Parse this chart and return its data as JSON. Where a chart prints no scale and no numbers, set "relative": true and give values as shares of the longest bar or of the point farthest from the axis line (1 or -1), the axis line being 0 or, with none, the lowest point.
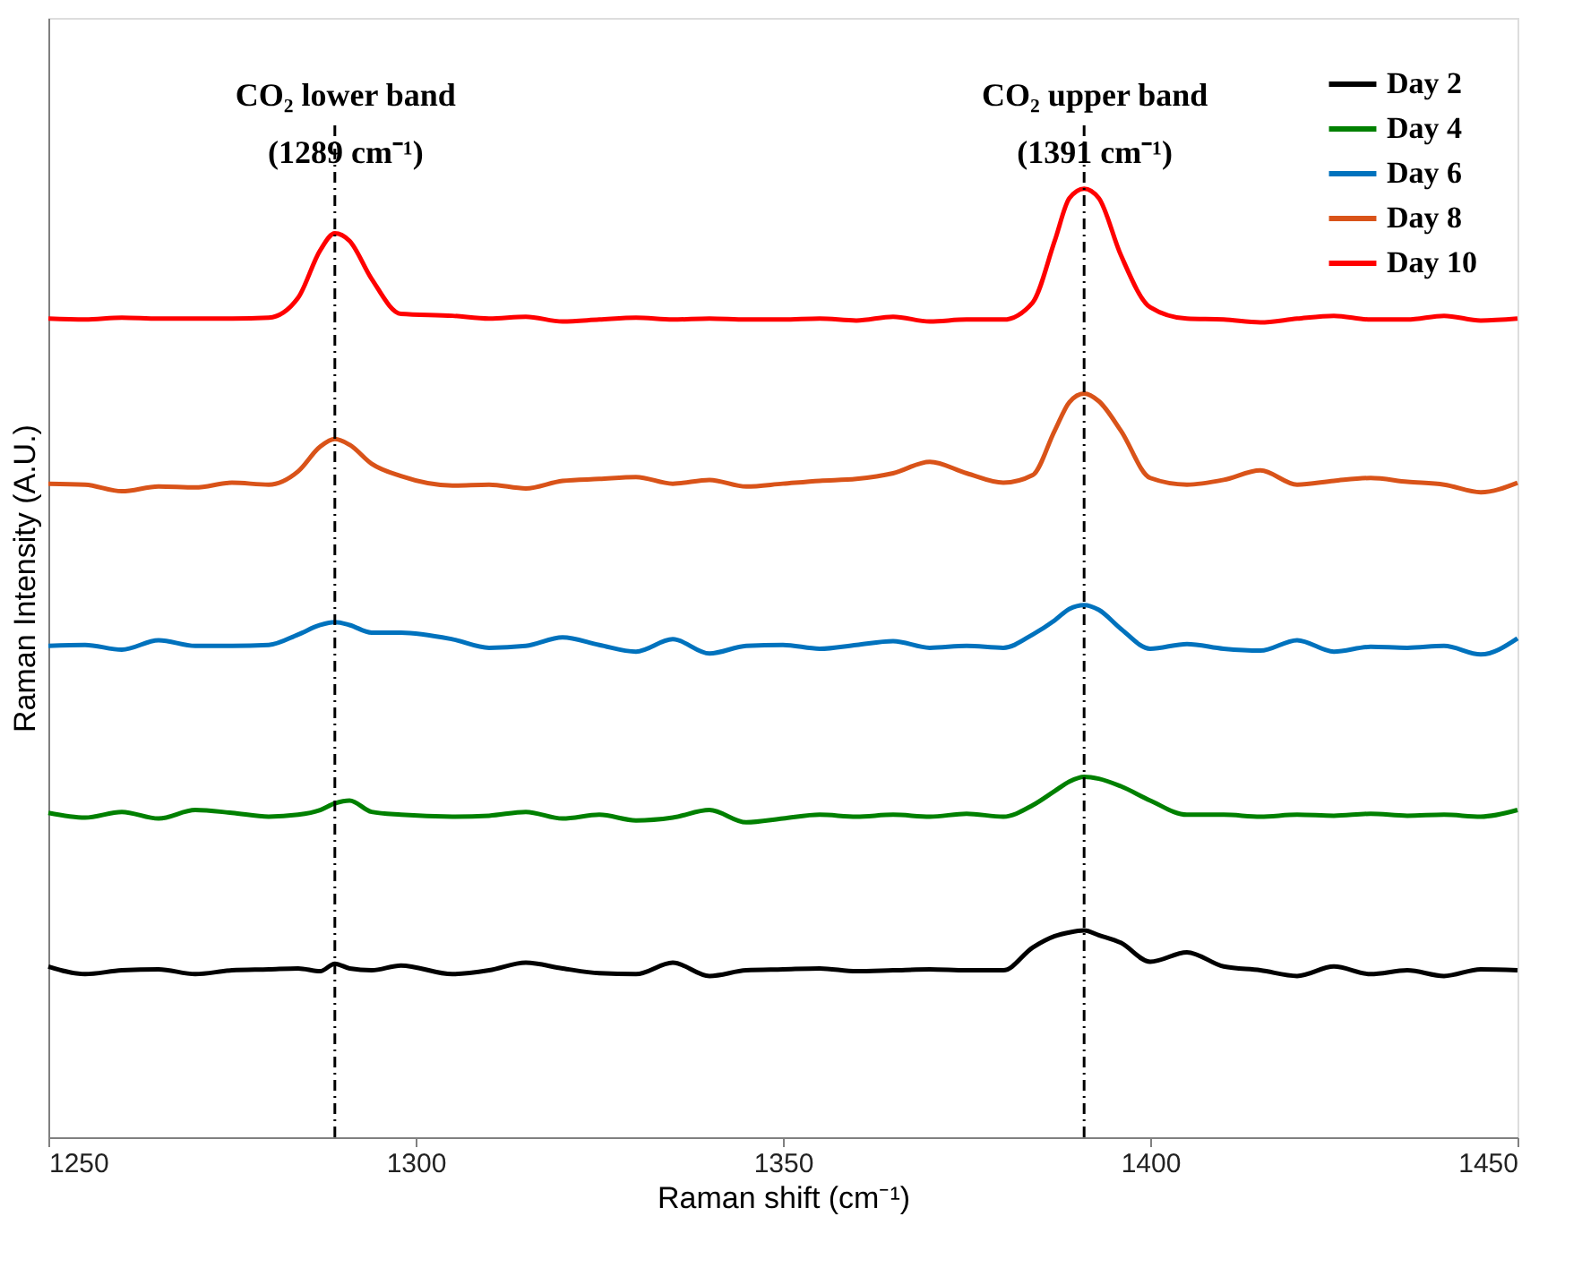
{
  "chart_data": {
    "type": "line",
    "relative": true,
    "xlabel": "Raman shift (cm⁻¹)",
    "ylabel": "Raman Intensity (A.U.)",
    "x": [
      1250,
      1255,
      1260,
      1265,
      1270,
      1275,
      1280,
      1284,
      1287,
      1289,
      1291,
      1294,
      1298,
      1305,
      1310,
      1315,
      1320,
      1325,
      1330,
      1335,
      1340,
      1345,
      1350,
      1355,
      1360,
      1365,
      1370,
      1375,
      1380,
      1384,
      1387,
      1389,
      1391,
      1393,
      1396,
      1400,
      1405,
      1410,
      1415,
      1420,
      1425,
      1430,
      1435,
      1440,
      1445,
      1450
    ],
    "xlim": [
      1250,
      1450
    ],
    "xticks": [
      1250,
      1300,
      1350,
      1400,
      1450
    ],
    "tick_labels": "x",
    "grid": false,
    "legend": "top right",
    "line_style": "solid",
    "series": [
      {
        "name": "Day 2",
        "color": "#000000",
        "values": [
          0.18,
          0.172,
          0.176,
          0.177,
          0.172,
          0.176,
          0.177,
          0.178,
          0.175,
          0.183,
          0.178,
          0.176,
          0.181,
          0.172,
          0.176,
          0.184,
          0.178,
          0.173,
          0.172,
          0.184,
          0.17,
          0.176,
          0.177,
          0.178,
          0.175,
          0.176,
          0.177,
          0.176,
          0.176,
          0.2,
          0.212,
          0.216,
          0.218,
          0.213,
          0.205,
          0.185,
          0.195,
          0.18,
          0.176,
          0.17,
          0.18,
          0.172,
          0.176,
          0.17,
          0.177,
          0.176
        ]
      },
      {
        "name": "Day 4",
        "color": "#008000",
        "values": [
          0.342,
          0.337,
          0.343,
          0.336,
          0.345,
          0.342,
          0.338,
          0.34,
          0.345,
          0.352,
          0.355,
          0.343,
          0.34,
          0.338,
          0.339,
          0.343,
          0.336,
          0.34,
          0.334,
          0.337,
          0.345,
          0.332,
          0.336,
          0.34,
          0.338,
          0.34,
          0.338,
          0.341,
          0.338,
          0.35,
          0.365,
          0.375,
          0.38,
          0.378,
          0.37,
          0.355,
          0.34,
          0.34,
          0.338,
          0.34,
          0.339,
          0.341,
          0.339,
          0.34,
          0.338,
          0.345
        ]
      },
      {
        "name": "Day 6",
        "color": "#0072bd",
        "values": [
          0.518,
          0.519,
          0.514,
          0.524,
          0.518,
          0.518,
          0.519,
          0.53,
          0.54,
          0.543,
          0.54,
          0.532,
          0.532,
          0.525,
          0.516,
          0.518,
          0.527,
          0.519,
          0.512,
          0.525,
          0.51,
          0.518,
          0.519,
          0.515,
          0.519,
          0.523,
          0.516,
          0.518,
          0.516,
          0.53,
          0.545,
          0.557,
          0.561,
          0.556,
          0.536,
          0.515,
          0.52,
          0.515,
          0.513,
          0.524,
          0.512,
          0.517,
          0.516,
          0.518,
          0.509,
          0.526
        ]
      },
      {
        "name": "Day 8",
        "color": "#d95319",
        "values": [
          0.689,
          0.688,
          0.681,
          0.686,
          0.685,
          0.69,
          0.688,
          0.702,
          0.728,
          0.736,
          0.73,
          0.71,
          0.697,
          0.687,
          0.688,
          0.684,
          0.692,
          0.694,
          0.696,
          0.689,
          0.693,
          0.686,
          0.689,
          0.692,
          0.694,
          0.7,
          0.712,
          0.7,
          0.69,
          0.698,
          0.745,
          0.775,
          0.784,
          0.776,
          0.745,
          0.695,
          0.688,
          0.693,
          0.703,
          0.688,
          0.692,
          0.695,
          0.691,
          0.688,
          0.68,
          0.69
        ]
      },
      {
        "name": "Day 10",
        "color": "#ff0000",
        "values": [
          0.863,
          0.862,
          0.864,
          0.863,
          0.863,
          0.863,
          0.864,
          0.885,
          0.935,
          0.953,
          0.945,
          0.905,
          0.868,
          0.866,
          0.863,
          0.865,
          0.86,
          0.862,
          0.864,
          0.862,
          0.863,
          0.862,
          0.862,
          0.863,
          0.861,
          0.865,
          0.86,
          0.862,
          0.862,
          0.88,
          0.945,
          0.99,
          1.0,
          0.99,
          0.93,
          0.875,
          0.863,
          0.862,
          0.859,
          0.863,
          0.866,
          0.862,
          0.862,
          0.866,
          0.861,
          0.863
        ]
      }
    ],
    "ref_lines": [
      {
        "axis": "x",
        "value": 1289,
        "label": "CO₂ lower band\n(1289 cm⁻¹)",
        "color": "#000000",
        "line_style": "dashdot"
      },
      {
        "axis": "x",
        "value": 1391,
        "label": "CO₂ upper band\n(1391 cm⁻¹)",
        "color": "#000000",
        "line_style": "dashdot"
      }
    ]
  }
}
